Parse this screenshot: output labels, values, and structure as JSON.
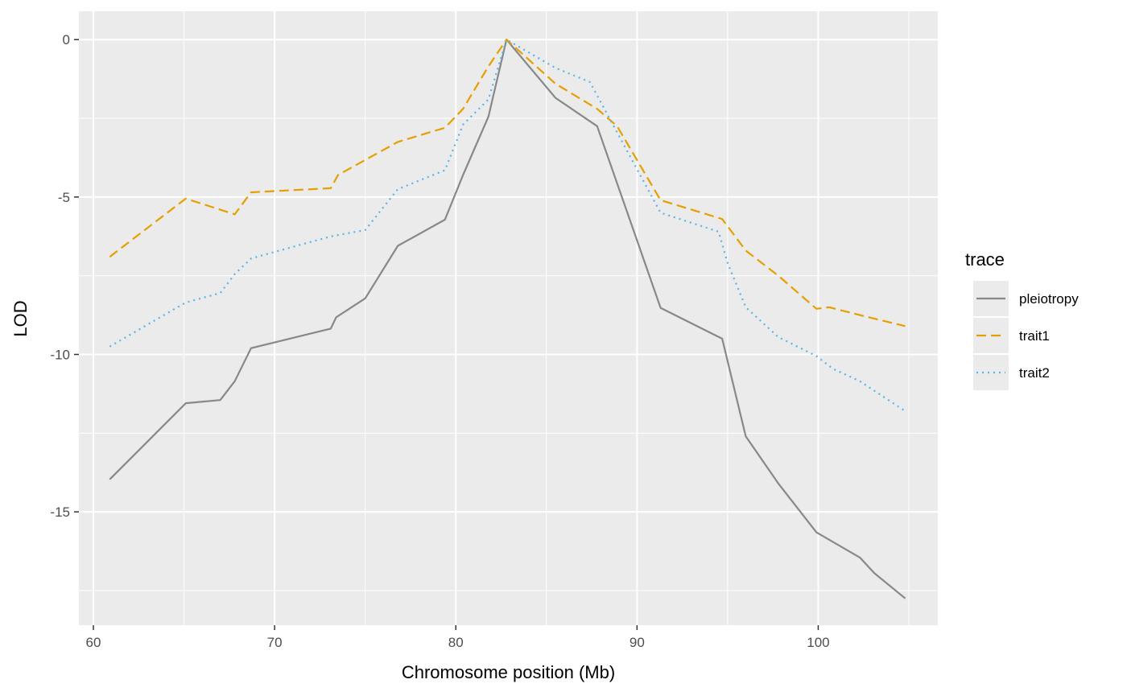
{
  "chart_data": {
    "type": "line",
    "xlabel": "Chromosome position (Mb)",
    "ylabel": "LOD",
    "xlim": [
      59.2,
      106.6
    ],
    "ylim": [
      -18.6,
      0.9
    ],
    "x_ticks": [
      60,
      70,
      80,
      90,
      100
    ],
    "x_minor_ticks": [
      65,
      75,
      85,
      95,
      105
    ],
    "y_ticks": [
      0,
      -5,
      -10,
      -15
    ],
    "y_minor_ticks": [
      -2.5,
      -7.5,
      -12.5,
      -17.5
    ],
    "x_tick_labels": [
      "60",
      "70",
      "80",
      "90",
      "100"
    ],
    "y_tick_labels": [
      "0",
      "-5",
      "-10",
      "-15"
    ],
    "grid": true,
    "legend": {
      "title": "trace",
      "position": "right"
    },
    "series": [
      {
        "name": "pleiotropy",
        "color": "#888888",
        "dash": "solid",
        "points": [
          [
            60.9,
            -13.97
          ],
          [
            65.1,
            -11.55
          ],
          [
            67.0,
            -11.45
          ],
          [
            67.8,
            -10.85
          ],
          [
            68.7,
            -9.8
          ],
          [
            73.1,
            -9.18
          ],
          [
            73.4,
            -8.82
          ],
          [
            75.0,
            -8.22
          ],
          [
            76.8,
            -6.55
          ],
          [
            79.4,
            -5.72
          ],
          [
            80.4,
            -4.3
          ],
          [
            81.8,
            -2.45
          ],
          [
            82.8,
            0.0
          ],
          [
            85.5,
            -1.85
          ],
          [
            87.8,
            -2.75
          ],
          [
            91.3,
            -8.52
          ],
          [
            94.7,
            -9.5
          ],
          [
            96.0,
            -12.6
          ],
          [
            97.8,
            -14.1
          ],
          [
            99.9,
            -15.65
          ],
          [
            100.8,
            -15.95
          ],
          [
            102.3,
            -16.45
          ],
          [
            103.1,
            -16.95
          ],
          [
            104.8,
            -17.75
          ]
        ]
      },
      {
        "name": "trait1",
        "color": "#e69f00",
        "dash": "dashed",
        "points": [
          [
            60.9,
            -6.9
          ],
          [
            65.1,
            -5.05
          ],
          [
            67.8,
            -5.55
          ],
          [
            68.7,
            -4.85
          ],
          [
            73.1,
            -4.72
          ],
          [
            73.5,
            -4.3
          ],
          [
            76.8,
            -3.25
          ],
          [
            79.4,
            -2.8
          ],
          [
            80.4,
            -2.2
          ],
          [
            81.8,
            -0.85
          ],
          [
            82.8,
            0.0
          ],
          [
            85.5,
            -1.4
          ],
          [
            87.8,
            -2.2
          ],
          [
            88.9,
            -2.75
          ],
          [
            91.3,
            -5.1
          ],
          [
            94.7,
            -5.7
          ],
          [
            96.0,
            -6.7
          ],
          [
            97.8,
            -7.5
          ],
          [
            99.9,
            -8.55
          ],
          [
            100.6,
            -8.5
          ],
          [
            102.3,
            -8.75
          ],
          [
            104.8,
            -9.1
          ]
        ]
      },
      {
        "name": "trait2",
        "color": "#56b4e9",
        "dash": "dotted",
        "points": [
          [
            60.9,
            -9.75
          ],
          [
            65.1,
            -8.35
          ],
          [
            67.0,
            -8.05
          ],
          [
            67.8,
            -7.45
          ],
          [
            68.7,
            -6.95
          ],
          [
            73.1,
            -6.25
          ],
          [
            75.0,
            -6.05
          ],
          [
            76.8,
            -4.75
          ],
          [
            79.4,
            -4.15
          ],
          [
            80.4,
            -2.7
          ],
          [
            81.8,
            -1.9
          ],
          [
            82.8,
            0.0
          ],
          [
            85.5,
            -0.9
          ],
          [
            87.4,
            -1.35
          ],
          [
            88.9,
            -2.95
          ],
          [
            91.3,
            -5.5
          ],
          [
            94.5,
            -6.1
          ],
          [
            95.0,
            -7.1
          ],
          [
            96.0,
            -8.5
          ],
          [
            97.8,
            -9.45
          ],
          [
            99.9,
            -10.05
          ],
          [
            100.8,
            -10.45
          ],
          [
            102.3,
            -10.85
          ],
          [
            104.8,
            -11.8
          ]
        ]
      }
    ]
  }
}
